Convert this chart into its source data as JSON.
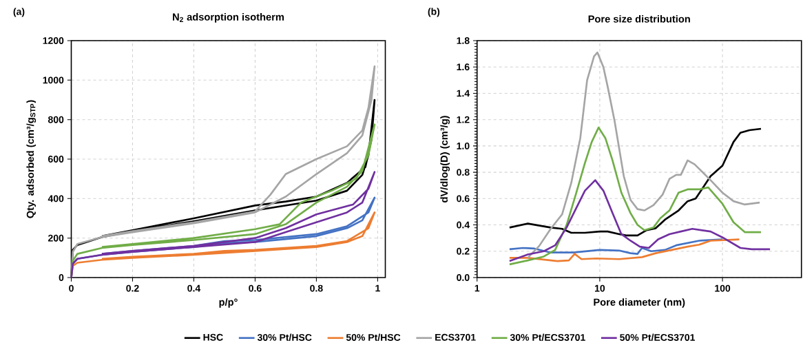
{
  "chart_data": [
    {
      "type": "line",
      "title": "N$_{2}$ adsorption isotherm",
      "xlabel": "p/p°",
      "ylabel": "Qty. adsorbed (cm³/g$_{STP}$)",
      "annotations": [
        "(a)"
      ],
      "xlim": [
        0,
        1.025
      ],
      "ylim": [
        0,
        1200
      ],
      "xticks": [
        0,
        0.2,
        0.4,
        0.6,
        0.8,
        1
      ],
      "yticks": [
        0,
        200,
        400,
        600,
        800,
        1000,
        1200
      ],
      "grid": true,
      "legend": "bottom",
      "marker": "none",
      "line_style": "solid",
      "series": [
        {
          "name": "HSC",
          "color": "#000000",
          "x": [
            0,
            0.005,
            0.02,
            0.1,
            0.2,
            0.4,
            0.6,
            0.8,
            0.9,
            0.95,
            0.97,
            0.99,
            0.98,
            0.96,
            0.9,
            0.8,
            0.7,
            0.6,
            0.4,
            0.2,
            0.1
          ],
          "values": [
            0,
            140,
            165,
            205,
            235,
            285,
            340,
            390,
            440,
            520,
            620,
            900,
            700,
            560,
            480,
            410,
            385,
            365,
            300,
            240,
            210
          ]
        },
        {
          "name": "30% Pt/HSC",
          "color": "#4472c4",
          "x": [
            0,
            0.005,
            0.02,
            0.1,
            0.2,
            0.4,
            0.5,
            0.6,
            0.8,
            0.9,
            0.95,
            0.99,
            0.97,
            0.9,
            0.8,
            0.6,
            0.5,
            0.4,
            0.2,
            0.1
          ],
          "values": [
            0,
            70,
            95,
            115,
            130,
            155,
            175,
            180,
            210,
            250,
            290,
            405,
            330,
            260,
            220,
            190,
            185,
            160,
            135,
            120
          ]
        },
        {
          "name": "50% Pt/HSC",
          "color": "#ed7d31",
          "x": [
            0,
            0.005,
            0.02,
            0.1,
            0.2,
            0.4,
            0.5,
            0.6,
            0.8,
            0.9,
            0.95,
            0.99,
            0.97,
            0.9,
            0.8,
            0.6,
            0.5,
            0.4,
            0.2,
            0.1
          ],
          "values": [
            0,
            60,
            75,
            90,
            100,
            115,
            125,
            135,
            155,
            180,
            210,
            330,
            250,
            185,
            160,
            140,
            135,
            120,
            105,
            95
          ]
        },
        {
          "name": "ECS3701",
          "color": "#a5a5a5",
          "x": [
            0,
            0.005,
            0.02,
            0.1,
            0.2,
            0.4,
            0.6,
            0.7,
            0.8,
            0.9,
            0.95,
            0.98,
            0.99,
            0.97,
            0.95,
            0.9,
            0.8,
            0.7,
            0.65,
            0.6,
            0.4,
            0.2,
            0.1
          ],
          "values": [
            0,
            130,
            170,
            205,
            230,
            275,
            330,
            410,
            524,
            630,
            720,
            900,
            1070,
            860,
            745,
            665,
            600,
            524,
            420,
            335,
            280,
            235,
            210
          ]
        },
        {
          "name": "30% Pt/ECS3701",
          "color": "#70ad47",
          "x": [
            0,
            0.005,
            0.02,
            0.1,
            0.2,
            0.4,
            0.6,
            0.7,
            0.8,
            0.9,
            0.95,
            0.99,
            0.97,
            0.93,
            0.85,
            0.75,
            0.68,
            0.6,
            0.4,
            0.2,
            0.1
          ],
          "values": [
            0,
            85,
            120,
            150,
            165,
            190,
            220,
            270,
            380,
            460,
            540,
            775,
            620,
            500,
            440,
            380,
            270,
            245,
            200,
            170,
            155
          ]
        },
        {
          "name": "50% Pt/ECS3701",
          "color": "#7030a0",
          "x": [
            0,
            0.005,
            0.02,
            0.1,
            0.2,
            0.4,
            0.6,
            0.7,
            0.8,
            0.9,
            0.95,
            0.99,
            0.97,
            0.92,
            0.8,
            0.7,
            0.6,
            0.4,
            0.2,
            0.1
          ],
          "values": [
            0,
            70,
            95,
            115,
            130,
            155,
            180,
            230,
            280,
            330,
            380,
            535,
            450,
            370,
            320,
            250,
            200,
            160,
            135,
            120
          ]
        }
      ]
    },
    {
      "type": "line",
      "title": "Pore size distribution",
      "xlabel": "Pore diameter (nm)",
      "ylabel": "dV/dlog(D) (cm³/g)",
      "annotations": [
        "(b)"
      ],
      "log": "x",
      "xlim": [
        1,
        440
      ],
      "ylim": [
        0,
        1.8
      ],
      "xticks": [
        1,
        10,
        100
      ],
      "yticks": [
        {
          "value": 0,
          "label": "0.0"
        },
        {
          "value": 0.2,
          "label": "0.2"
        },
        {
          "value": 0.4,
          "label": "0.4"
        },
        {
          "value": 0.6,
          "label": "0.6"
        },
        {
          "value": 0.8,
          "label": "0.8"
        },
        {
          "value": 1,
          "label": "1.0"
        },
        {
          "value": 1.2,
          "label": "1.2"
        },
        {
          "value": 1.4,
          "label": "1.4"
        },
        {
          "value": 1.6,
          "label": "1.6"
        },
        {
          "value": 1.8,
          "label": "1.8"
        }
      ],
      "grid": true,
      "marker": "none",
      "line_style": "solid",
      "series": [
        {
          "color": "#000000",
          "x": [
            1.84,
            2.59,
            3.98,
            4.93,
            5.86,
            7.57,
            10,
            11.6,
            14.4,
            16.4,
            20.3,
            24.1,
            28.6,
            34,
            43.9,
            52,
            60.5,
            80,
            100,
            123,
            140,
            166,
            206
          ],
          "values": [
            0.38,
            0.41,
            0.38,
            0.37,
            0.34,
            0.34,
            0.35,
            0.35,
            0.33,
            0.32,
            0.32,
            0.36,
            0.375,
            0.44,
            0.51,
            0.58,
            0.6,
            0.77,
            0.85,
            1.03,
            1.1,
            1.12,
            1.13
          ]
        },
        {
          "color": "#4472c4",
          "x": [
            1.84,
            2.38,
            2.94,
            3.98,
            6.1,
            10,
            14.4,
            17.8,
            20.3,
            22.1,
            26.2,
            34,
            42,
            64.6,
            100
          ],
          "values": [
            0.215,
            0.225,
            0.22,
            0.19,
            0.19,
            0.21,
            0.205,
            0.185,
            0.18,
            0.225,
            0.2,
            0.21,
            0.245,
            0.28,
            0.29
          ]
        },
        {
          "color": "#ed7d31",
          "x": [
            1.84,
            2.59,
            4.52,
            5.6,
            6.24,
            7.1,
            9.38,
            14.4,
            22.1,
            28.6,
            38.6,
            52,
            64.6,
            80,
            137
          ],
          "values": [
            0.15,
            0.15,
            0.125,
            0.13,
            0.18,
            0.14,
            0.145,
            0.14,
            0.155,
            0.185,
            0.21,
            0.235,
            0.25,
            0.28,
            0.29
          ]
        },
        {
          "color": "#a5a5a5",
          "x": [
            2.59,
            3.21,
            3.98,
            4.93,
            5.86,
            6.94,
            7.89,
            8.98,
            9.57,
            10.7,
            11.6,
            13.2,
            15.7,
            17.8,
            20.3,
            23.1,
            27.4,
            32.5,
            37,
            42,
            45.8,
            52,
            59.3,
            80,
            100,
            123,
            152,
            201
          ],
          "values": [
            0.15,
            0.24,
            0.37,
            0.48,
            0.72,
            1.06,
            1.5,
            1.68,
            1.71,
            1.6,
            1.45,
            1.19,
            0.77,
            0.59,
            0.52,
            0.51,
            0.55,
            0.63,
            0.75,
            0.78,
            0.78,
            0.89,
            0.86,
            0.74,
            0.645,
            0.58,
            0.555,
            0.57
          ]
        },
        {
          "color": "#70ad47",
          "x": [
            1.84,
            2.59,
            3.5,
            4.33,
            5.37,
            6.37,
            7.57,
            8.6,
            9.78,
            11.1,
            12.7,
            15,
            17.8,
            20.3,
            23.1,
            27.4,
            31.1,
            37,
            43.9,
            52,
            64.6,
            76.6,
            100,
            123,
            152,
            206
          ],
          "values": [
            0.1,
            0.13,
            0.16,
            0.21,
            0.4,
            0.63,
            0.87,
            1.03,
            1.14,
            1.06,
            0.89,
            0.645,
            0.49,
            0.4,
            0.36,
            0.38,
            0.45,
            0.51,
            0.645,
            0.67,
            0.67,
            0.685,
            0.56,
            0.42,
            0.345,
            0.345
          ]
        },
        {
          "color": "#7030a0",
          "x": [
            1.84,
            2.59,
            3.5,
            4.33,
            5.37,
            6.37,
            7.57,
            9.18,
            10.7,
            12.7,
            15,
            17.8,
            21.2,
            25.1,
            29.9,
            37,
            45.8,
            56.8,
            80,
            100,
            140,
            173,
            244
          ],
          "values": [
            0.125,
            0.175,
            0.2,
            0.245,
            0.38,
            0.52,
            0.66,
            0.74,
            0.66,
            0.49,
            0.33,
            0.28,
            0.235,
            0.225,
            0.29,
            0.33,
            0.35,
            0.37,
            0.35,
            0.305,
            0.225,
            0.215,
            0.215
          ]
        }
      ]
    }
  ]
}
